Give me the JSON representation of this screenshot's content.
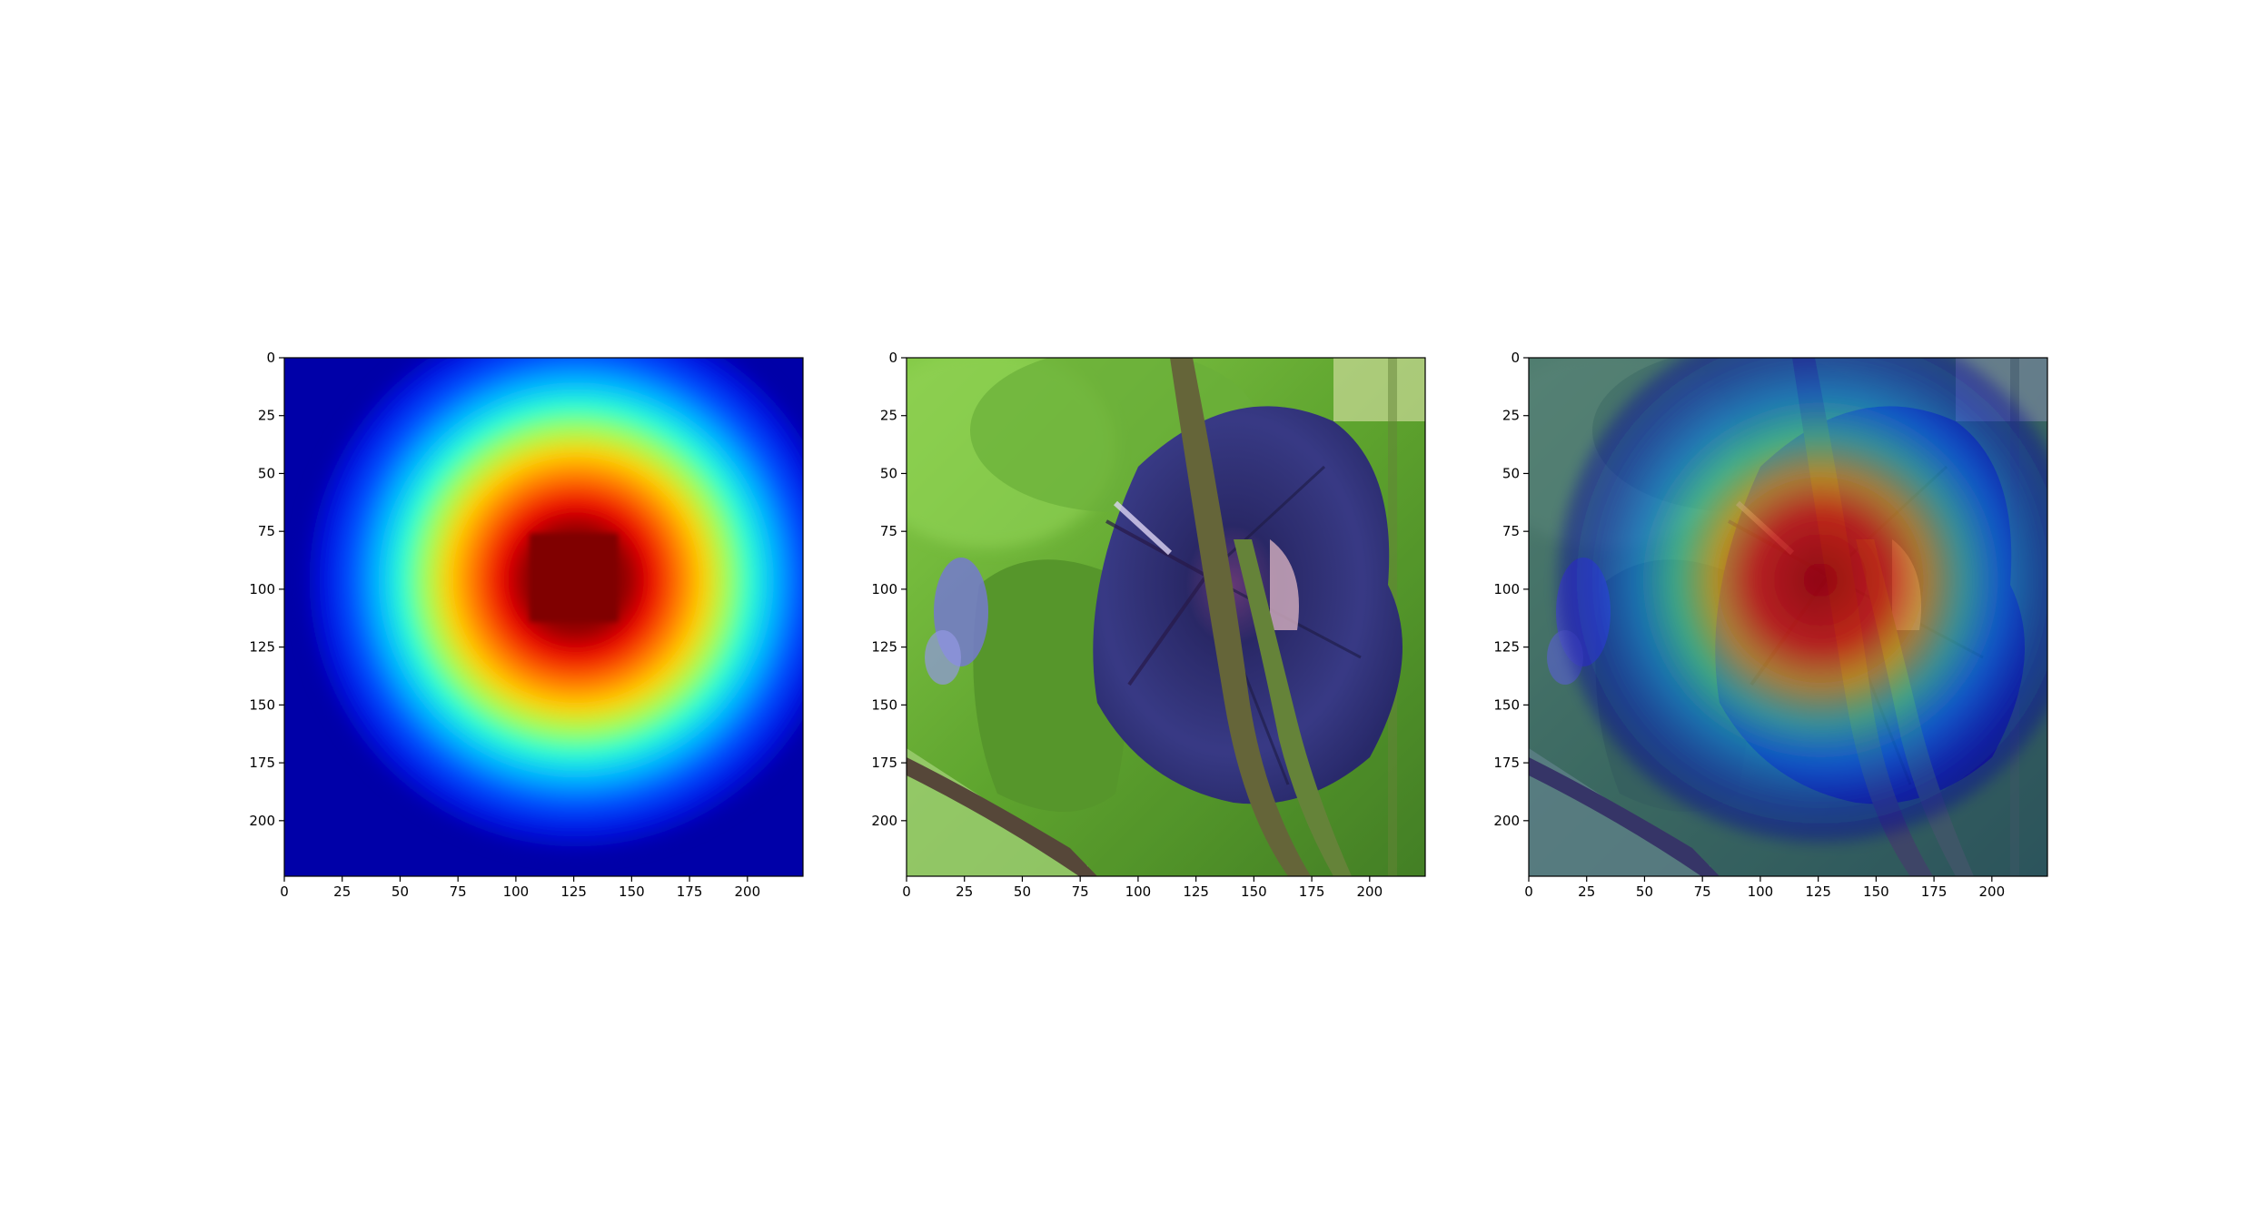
{
  "figure": {
    "background": "#ffffff",
    "panel_count": 3
  },
  "chart_data": [
    {
      "type": "heatmap",
      "panel": "heatmap",
      "title": "",
      "xlabel": "",
      "ylabel": "",
      "xlim": [
        0,
        224
      ],
      "ylim": [
        224,
        0
      ],
      "xticks": [
        0,
        25,
        50,
        75,
        100,
        125,
        150,
        175,
        200
      ],
      "yticks": [
        0,
        25,
        50,
        75,
        100,
        125,
        150,
        175,
        200
      ],
      "colormap": "jet",
      "peak": {
        "x": 125,
        "y": 95
      },
      "contours": [
        {
          "level": 0.5,
          "cx": 126,
          "cy": 96,
          "r": 54
        },
        {
          "level": 0.75,
          "cx": 126,
          "cy": 97,
          "r": 30
        },
        {
          "level": 1.0,
          "cx": 125,
          "cy": 95,
          "r": 19
        }
      ],
      "grid": false
    },
    {
      "type": "image",
      "panel": "photo",
      "title": "",
      "content": "dark purple morning-glory flower on a vine with green leaves",
      "xlim": [
        0,
        224
      ],
      "ylim": [
        224,
        0
      ],
      "xticks": [
        0,
        25,
        50,
        75,
        100,
        125,
        150,
        175,
        200
      ],
      "yticks": [
        0,
        25,
        50,
        75,
        100,
        125,
        150,
        175,
        200
      ],
      "grid": false
    },
    {
      "type": "heatmap",
      "panel": "overlay",
      "title": "",
      "content": "jet heatmap blended over the flower photo",
      "overlay_alpha": 0.45,
      "xlim": [
        0,
        224
      ],
      "ylim": [
        224,
        0
      ],
      "xticks": [
        0,
        25,
        50,
        75,
        100,
        125,
        150,
        175,
        200
      ],
      "yticks": [
        0,
        25,
        50,
        75,
        100,
        125,
        150,
        175,
        200
      ],
      "grid": false
    }
  ]
}
